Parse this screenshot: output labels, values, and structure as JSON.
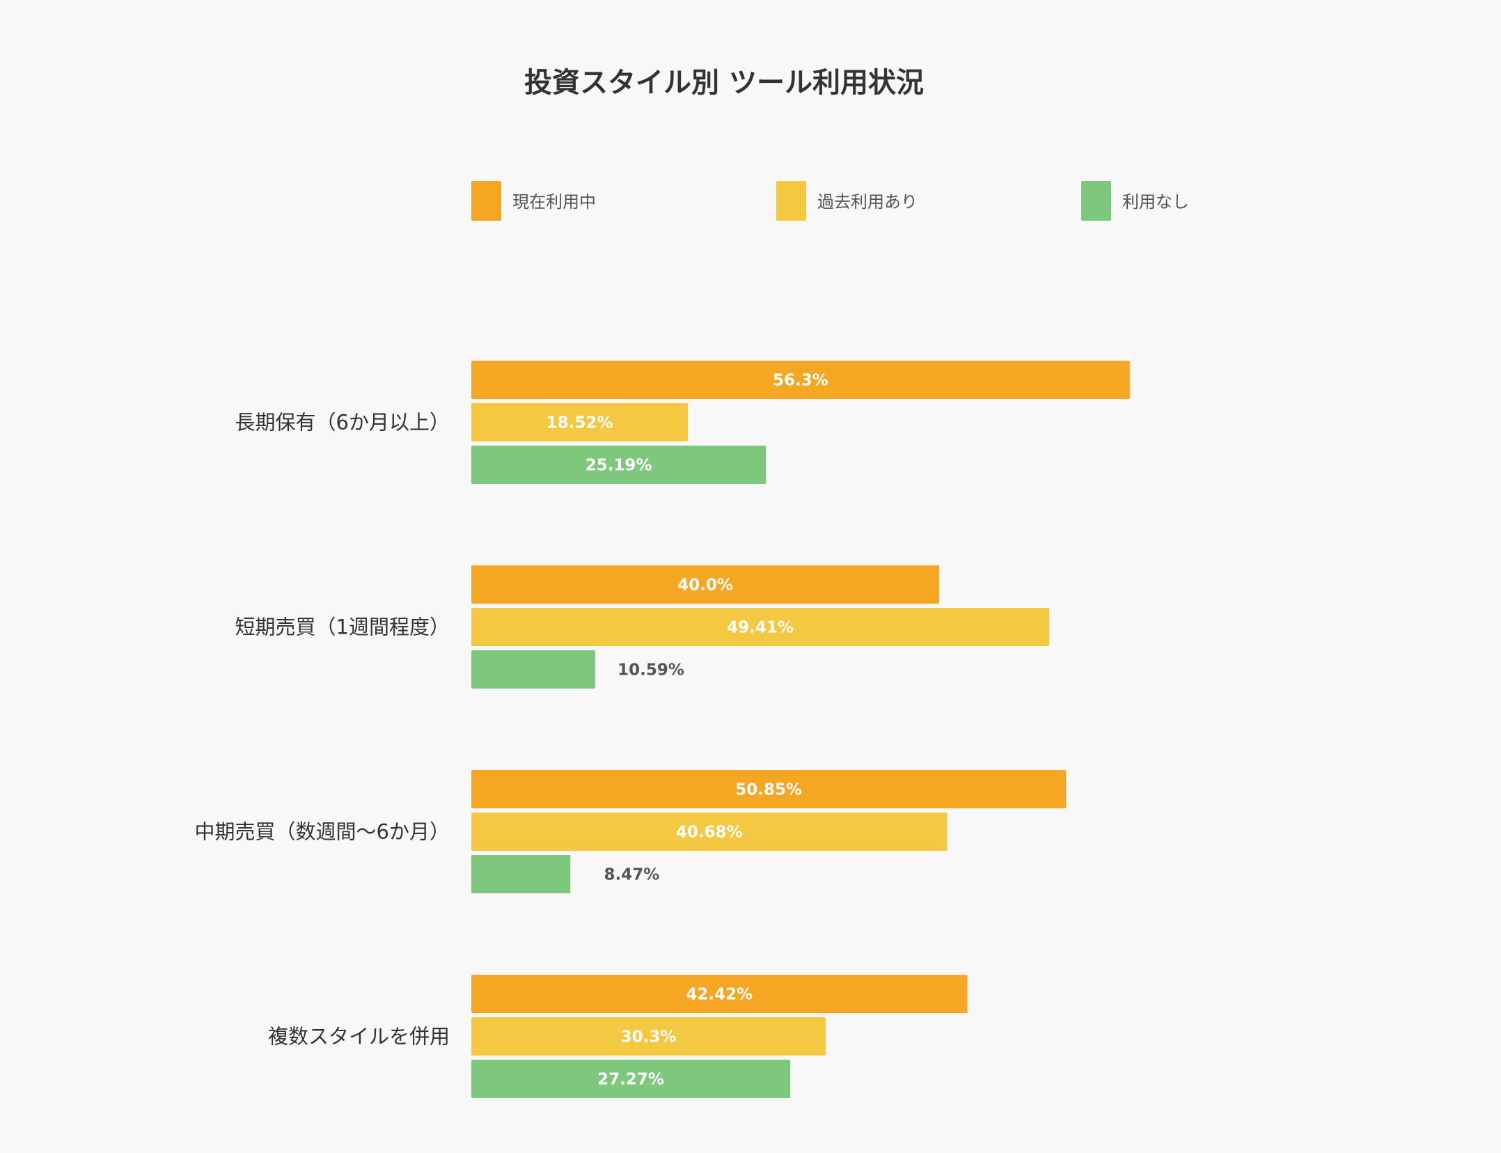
{
  "chart_data": {
    "type": "bar",
    "orientation": "horizontal",
    "title": "投資スタイル別 ツール利用状況",
    "categories": [
      "長期保有（6か月以上）",
      "短期売買（1週間程度）",
      "中期売買（数週間〜6か月）",
      "複数スタイルを併用"
    ],
    "series": [
      {
        "name": "現在利用中",
        "color": "#f5a623",
        "values": [
          56.3,
          40.0,
          50.85,
          42.42
        ],
        "labels": [
          "56.3%",
          "40.0%",
          "50.85%",
          "42.42%"
        ]
      },
      {
        "name": "過去利用あり",
        "color": "#f5c842",
        "values": [
          18.52,
          49.41,
          40.68,
          30.3
        ],
        "labels": [
          "18.52%",
          "49.41%",
          "40.68%",
          "30.3%"
        ]
      },
      {
        "name": "利用なし",
        "color": "#7ec87e",
        "values": [
          25.19,
          10.59,
          8.47,
          27.27
        ],
        "labels": [
          "25.19%",
          "10.59%",
          "8.47%",
          "27.27%"
        ]
      }
    ],
    "unit": "%",
    "legend_position": "top",
    "grid": false,
    "axes_visible": false
  }
}
